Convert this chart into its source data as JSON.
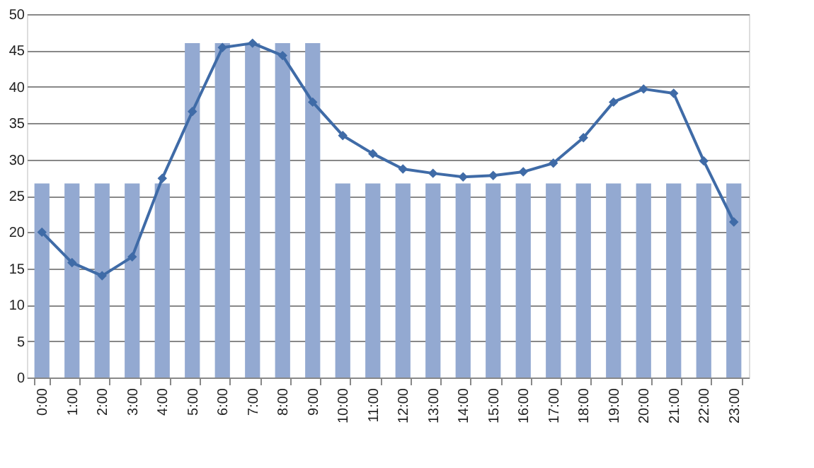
{
  "chart_data": {
    "type": "bar",
    "categories": [
      "0:00",
      "1:00",
      "2:00",
      "3:00",
      "4:00",
      "5:00",
      "6:00",
      "7:00",
      "8:00",
      "9:00",
      "10:00",
      "11:00",
      "12:00",
      "13:00",
      "14:00",
      "15:00",
      "16:00",
      "17:00",
      "18:00",
      "19:00",
      "20:00",
      "21:00",
      "22:00",
      "23:00"
    ],
    "series": [
      {
        "type": "bar",
        "color": "#93a9d1",
        "values": [
          26.7,
          26.7,
          26.7,
          26.7,
          26.7,
          46,
          46,
          46,
          46,
          46,
          26.7,
          26.7,
          26.7,
          26.7,
          26.7,
          26.7,
          26.7,
          26.7,
          26.7,
          26.7,
          26.7,
          26.7,
          26.7,
          26.7
        ]
      },
      {
        "type": "line",
        "color": "#3f6ba7",
        "marker": "diamond",
        "values": [
          20,
          15.8,
          14,
          16.6,
          27.4,
          36.6,
          45.4,
          46,
          44.3,
          37.9,
          33.3,
          30.8,
          28.7,
          28.1,
          27.6,
          27.8,
          28.3,
          29.5,
          33,
          37.9,
          39.7,
          39.1,
          29.8,
          21.4
        ]
      }
    ],
    "ylim": [
      0,
      50
    ],
    "yticks": [
      0,
      5,
      10,
      15,
      20,
      25,
      30,
      35,
      40,
      45,
      50
    ],
    "grid": "y",
    "legend": false
  }
}
